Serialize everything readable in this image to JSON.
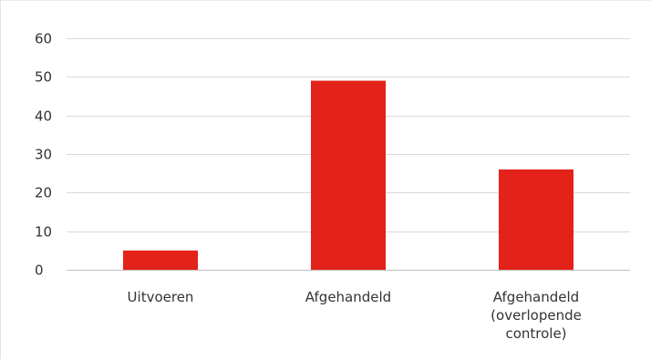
{
  "chart_data": {
    "type": "bar",
    "title": "",
    "xlabel": "",
    "ylabel": "",
    "categories": [
      [
        "Uitvoeren"
      ],
      [
        "Afgehandeld"
      ],
      [
        "Afgehandeld",
        "(overlopende",
        "controle)"
      ]
    ],
    "values": [
      5,
      49,
      26
    ],
    "ylim": [
      0,
      60
    ],
    "yticks": [
      0,
      10,
      20,
      30,
      40,
      50,
      60
    ],
    "grid": true,
    "legend": "none",
    "colors": {
      "bar": "#e32219",
      "grid": "#d9d9d9",
      "axis": "#bfbfbf",
      "text": "#333333"
    }
  }
}
